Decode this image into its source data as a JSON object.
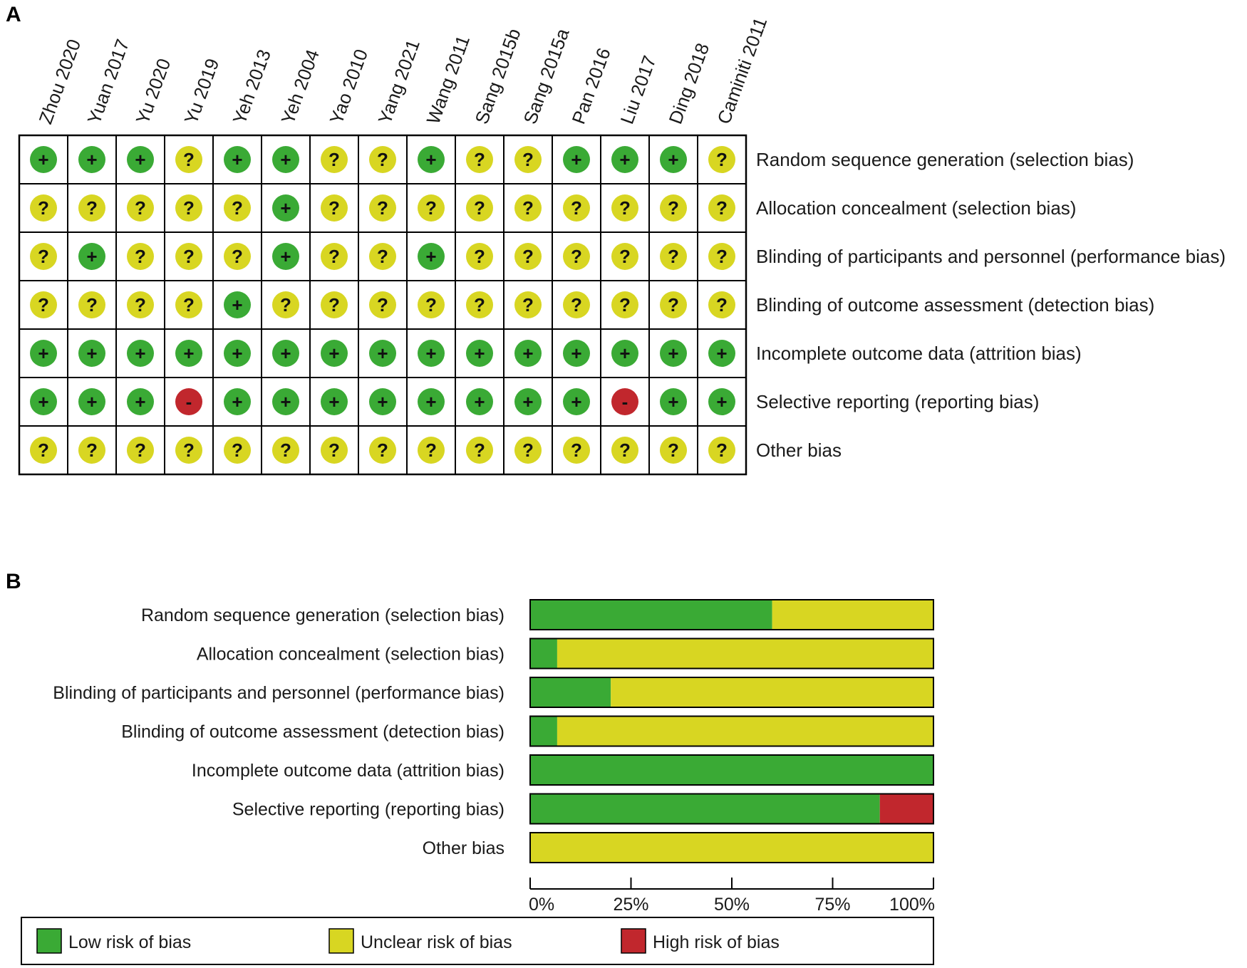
{
  "panel_a": {
    "label": "A"
  },
  "panel_b": {
    "label": "B"
  },
  "colors": {
    "low": "#3aaa35",
    "unclear": "#d8d622",
    "high": "#c1272d",
    "border": "#000000"
  },
  "symbols": {
    "low": "+",
    "unclear": "?",
    "high": "-"
  },
  "chart_data": [
    {
      "type": "table",
      "panel": "A",
      "studies": [
        "Zhou 2020",
        "Yuan 2017",
        "Yu 2020",
        "Yu 2019",
        "Yeh 2013",
        "Yeh 2004",
        "Yao 2010",
        "Yang 2021",
        "Wang 2011",
        "Sang 2015b",
        "Sang 2015a",
        "Pan 2016",
        "Liu 2017",
        "Ding 2018",
        "Caminiti 2011"
      ],
      "domains": [
        "Random sequence generation (selection bias)",
        "Allocation concealment (selection bias)",
        "Blinding of participants and personnel (performance bias)",
        "Blinding of outcome assessment (detection bias)",
        "Incomplete outcome data (attrition bias)",
        "Selective reporting (reporting bias)",
        "Other bias"
      ],
      "judgements": [
        [
          "low",
          "low",
          "low",
          "unclear",
          "low",
          "low",
          "unclear",
          "unclear",
          "low",
          "unclear",
          "unclear",
          "low",
          "low",
          "low",
          "unclear"
        ],
        [
          "unclear",
          "unclear",
          "unclear",
          "unclear",
          "unclear",
          "low",
          "unclear",
          "unclear",
          "unclear",
          "unclear",
          "unclear",
          "unclear",
          "unclear",
          "unclear",
          "unclear"
        ],
        [
          "unclear",
          "low",
          "unclear",
          "unclear",
          "unclear",
          "low",
          "unclear",
          "unclear",
          "low",
          "unclear",
          "unclear",
          "unclear",
          "unclear",
          "unclear",
          "unclear"
        ],
        [
          "unclear",
          "unclear",
          "unclear",
          "unclear",
          "low",
          "unclear",
          "unclear",
          "unclear",
          "unclear",
          "unclear",
          "unclear",
          "unclear",
          "unclear",
          "unclear",
          "unclear"
        ],
        [
          "low",
          "low",
          "low",
          "low",
          "low",
          "low",
          "low",
          "low",
          "low",
          "low",
          "low",
          "low",
          "low",
          "low",
          "low"
        ],
        [
          "low",
          "low",
          "low",
          "high",
          "low",
          "low",
          "low",
          "low",
          "low",
          "low",
          "low",
          "low",
          "high",
          "low",
          "low"
        ],
        [
          "unclear",
          "unclear",
          "unclear",
          "unclear",
          "unclear",
          "unclear",
          "unclear",
          "unclear",
          "unclear",
          "unclear",
          "unclear",
          "unclear",
          "unclear",
          "unclear",
          "unclear"
        ]
      ]
    },
    {
      "type": "bar",
      "panel": "B",
      "stacked": true,
      "orientation": "horizontal",
      "categories": [
        "Random sequence generation (selection bias)",
        "Allocation concealment (selection bias)",
        "Blinding of participants and personnel (performance bias)",
        "Blinding of outcome assessment (detection bias)",
        "Incomplete outcome data (attrition bias)",
        "Selective reporting (reporting bias)",
        "Other bias"
      ],
      "series": [
        {
          "name": "Low risk of bias",
          "key": "low",
          "values": [
            60,
            6.7,
            20,
            6.7,
            100,
            86.7,
            0
          ]
        },
        {
          "name": "Unclear risk of bias",
          "key": "unclear",
          "values": [
            40,
            93.3,
            80,
            93.3,
            0,
            0,
            100
          ]
        },
        {
          "name": "High risk of bias",
          "key": "high",
          "values": [
            0,
            0,
            0,
            0,
            0,
            13.3,
            0
          ]
        }
      ],
      "xlim": [
        0,
        100
      ],
      "xticks": [
        "0%",
        "25%",
        "50%",
        "75%",
        "100%"
      ],
      "legend_placement": "bottom"
    }
  ]
}
